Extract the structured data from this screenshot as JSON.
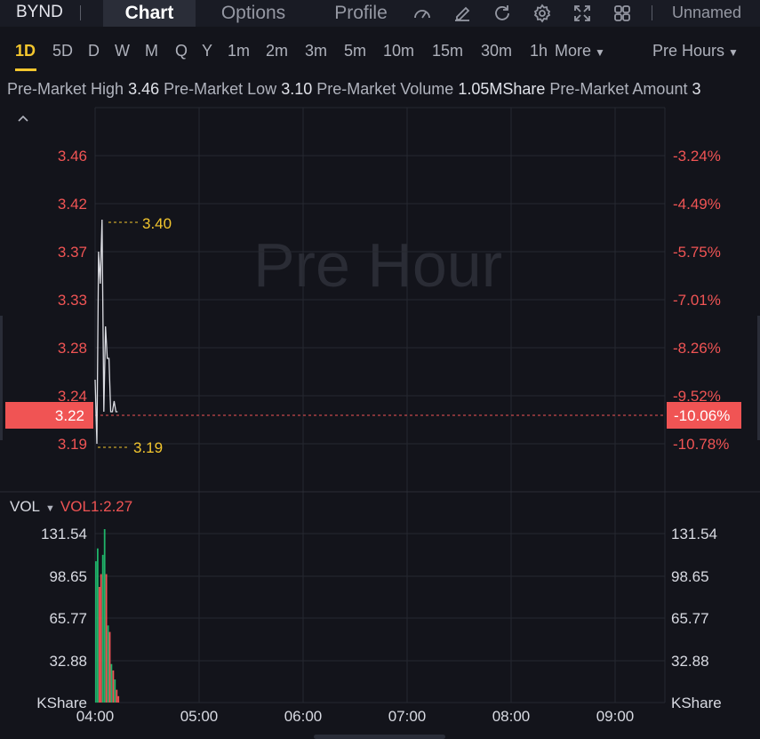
{
  "topbar": {
    "ticker": "BYND",
    "tabs": [
      {
        "label": "Chart",
        "active": true
      },
      {
        "label": "Options",
        "active": false
      },
      {
        "label": "Profile",
        "active": false
      }
    ],
    "tools": [
      "gauge-icon",
      "edit-icon",
      "refresh-icon",
      "settings-icon",
      "expand-icon",
      "grid-icon"
    ],
    "layout_name": "Unnamed"
  },
  "periods": {
    "items": [
      "1D",
      "5D",
      "D",
      "W",
      "M",
      "Q",
      "Y",
      "1m",
      "2m",
      "3m",
      "5m",
      "10m",
      "15m",
      "30m",
      "1h"
    ],
    "active": "1D",
    "more_label": "More",
    "session_label": "Pre Hours"
  },
  "stats": {
    "high_label": "Pre-Market High",
    "high_value": "3.46",
    "low_label": "Pre-Market Low",
    "low_value": "3.10",
    "volume_label": "Pre-Market Volume",
    "volume_value": "1.05MShare",
    "amount_label": "Pre-Market Amount",
    "amount_value": "3"
  },
  "price_chart": {
    "watermark": "Pre Hour",
    "left_ticks": [
      "3.46",
      "3.42",
      "3.37",
      "3.33",
      "3.28",
      "3.24",
      "3.19"
    ],
    "right_ticks": [
      "-3.24%",
      "-4.49%",
      "-5.75%",
      "-7.01%",
      "-8.26%",
      "-9.52%",
      "-10.78%"
    ],
    "current_price": "3.22",
    "current_pct": "-10.06%",
    "high_marker": "3.40",
    "low_marker": "3.19"
  },
  "volume_chart": {
    "label": "VOL",
    "indicator": "VOL1:2.27",
    "ticks": [
      "131.54",
      "98.65",
      "65.77",
      "32.88"
    ],
    "unit": "KShare",
    "time_labels": [
      "04:00",
      "05:00",
      "06:00",
      "07:00",
      "08:00",
      "09:00"
    ]
  },
  "colors": {
    "up": "#1fb46a",
    "down": "#f05454",
    "highlight": "#f3c62e",
    "price_line": "#dcdde3"
  },
  "chart_data": {
    "type": "line",
    "x": [
      "04:00",
      "04:01",
      "04:02",
      "04:03",
      "04:04",
      "04:05",
      "04:06",
      "04:07",
      "04:08",
      "04:09",
      "04:10",
      "04:11",
      "04:12",
      "04:13"
    ],
    "series": [
      {
        "values": [
          3.25,
          3.19,
          3.37,
          3.34,
          3.4,
          3.22,
          3.3,
          3.27,
          3.27,
          3.22,
          3.22,
          3.23,
          3.22,
          3.22
        ]
      }
    ],
    "volume": [
      {
        "value": 110,
        "dir": "up"
      },
      {
        "value": 120,
        "dir": "up"
      },
      {
        "value": 90,
        "dir": "down"
      },
      {
        "value": 100,
        "dir": "down"
      },
      {
        "value": 115,
        "dir": "up"
      },
      {
        "value": 135,
        "dir": "up"
      },
      {
        "value": 100,
        "dir": "down"
      },
      {
        "value": 60,
        "dir": "up"
      },
      {
        "value": 55,
        "dir": "down"
      },
      {
        "value": 30,
        "dir": "up"
      },
      {
        "value": 25,
        "dir": "down"
      },
      {
        "value": 18,
        "dir": "up"
      },
      {
        "value": 10,
        "dir": "down"
      },
      {
        "value": 5,
        "dir": "down"
      }
    ],
    "ylim": [
      3.17,
      3.48
    ],
    "volume_ylim": [
      0,
      140
    ]
  }
}
